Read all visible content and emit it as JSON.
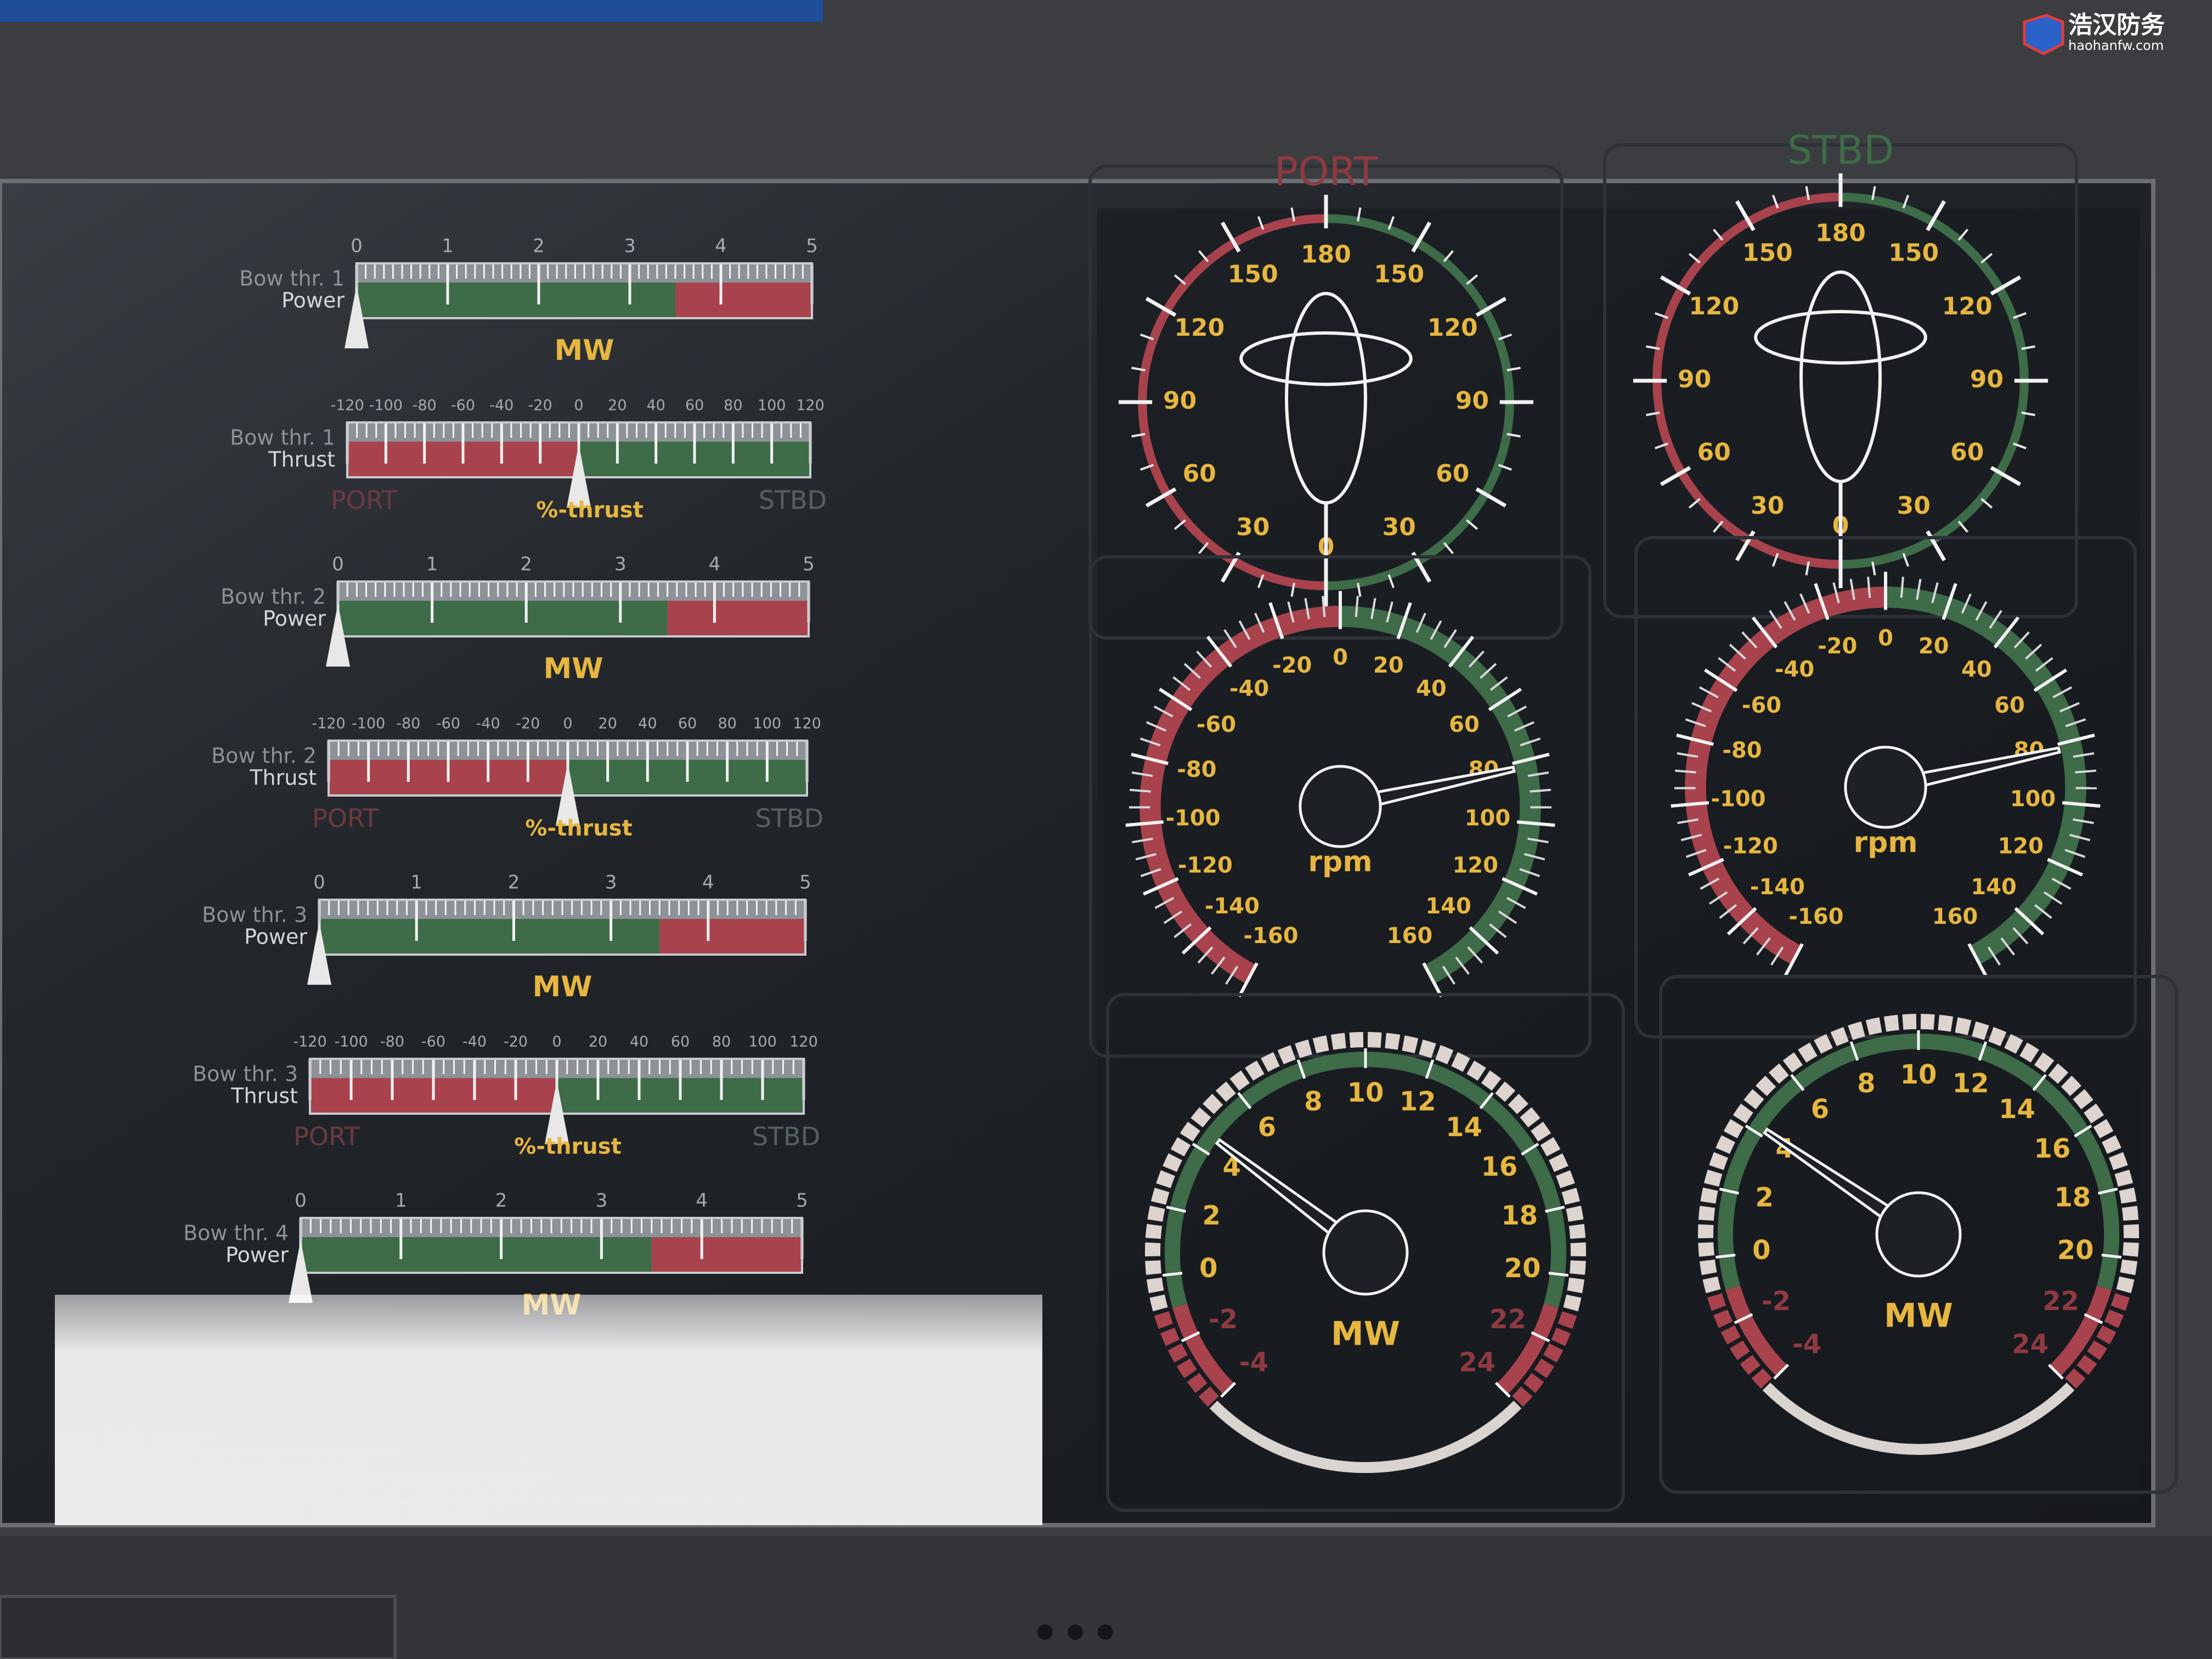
{
  "watermark": {
    "name": "浩汉防务",
    "url": "haohanfw.com"
  },
  "bars": [
    {
      "type": "power",
      "label": "Bow thr. 1",
      "quantity": "Power",
      "unit": "MW",
      "lim": [
        0,
        5
      ],
      "ticks": [
        0,
        1,
        2,
        3,
        4,
        5
      ],
      "minor_step": 0.1,
      "value": 0,
      "zones": [
        {
          "from": 0,
          "to": 3.5,
          "color": "#3e6b48"
        },
        {
          "from": 3.5,
          "to": 5,
          "color": "#a8434d"
        }
      ]
    },
    {
      "type": "thrust",
      "label": "Bow thr. 1",
      "quantity": "Thrust",
      "unit": "%-thrust",
      "port": "PORT",
      "stbd": "STBD",
      "lim": [
        -120,
        120
      ],
      "ticks": [
        -120,
        -100,
        -80,
        -60,
        -40,
        -20,
        0,
        20,
        40,
        60,
        80,
        100,
        120
      ],
      "minor_step": 5,
      "value": 0,
      "zones": [
        {
          "from": -120,
          "to": 0,
          "color": "#a8434d"
        },
        {
          "from": 0,
          "to": 120,
          "color": "#3e6b48"
        }
      ]
    },
    {
      "type": "power",
      "label": "Bow thr. 2",
      "quantity": "Power",
      "unit": "MW",
      "lim": [
        0,
        5
      ],
      "ticks": [
        0,
        1,
        2,
        3,
        4,
        5
      ],
      "minor_step": 0.1,
      "value": 0,
      "zones": [
        {
          "from": 0,
          "to": 3.5,
          "color": "#3e6b48"
        },
        {
          "from": 3.5,
          "to": 5,
          "color": "#a8434d"
        }
      ]
    },
    {
      "type": "thrust",
      "label": "Bow thr. 2",
      "quantity": "Thrust",
      "unit": "%-thrust",
      "port": "PORT",
      "stbd": "STBD",
      "lim": [
        -120,
        120
      ],
      "ticks": [
        -120,
        -100,
        -80,
        -60,
        -40,
        -20,
        0,
        20,
        40,
        60,
        80,
        100,
        120
      ],
      "minor_step": 5,
      "value": 0,
      "zones": [
        {
          "from": -120,
          "to": 0,
          "color": "#a8434d"
        },
        {
          "from": 0,
          "to": 120,
          "color": "#3e6b48"
        }
      ]
    },
    {
      "type": "power",
      "label": "Bow thr. 3",
      "quantity": "Power",
      "unit": "MW",
      "lim": [
        0,
        5
      ],
      "ticks": [
        0,
        1,
        2,
        3,
        4,
        5
      ],
      "minor_step": 0.1,
      "value": 0,
      "zones": [
        {
          "from": 0,
          "to": 3.5,
          "color": "#3e6b48"
        },
        {
          "from": 3.5,
          "to": 5,
          "color": "#a8434d"
        }
      ]
    },
    {
      "type": "thrust",
      "label": "Bow thr. 3",
      "quantity": "Thrust",
      "unit": "%-thrust",
      "port": "PORT",
      "stbd": "STBD",
      "lim": [
        -120,
        120
      ],
      "ticks": [
        -120,
        -100,
        -80,
        -60,
        -40,
        -20,
        0,
        20,
        40,
        60,
        80,
        100,
        120
      ],
      "minor_step": 5,
      "value": 0,
      "zones": [
        {
          "from": -120,
          "to": 0,
          "color": "#a8434d"
        },
        {
          "from": 0,
          "to": 120,
          "color": "#3e6b48"
        }
      ]
    },
    {
      "type": "power",
      "label": "Bow thr. 4",
      "quantity": "Power",
      "unit": "MW",
      "lim": [
        0,
        5
      ],
      "ticks": [
        0,
        1,
        2,
        3,
        4,
        5
      ],
      "minor_step": 0.1,
      "value": 0,
      "zones": [
        {
          "from": 0,
          "to": 3.5,
          "color": "#3e6b48"
        },
        {
          "from": 3.5,
          "to": 5,
          "color": "#a8434d"
        }
      ]
    }
  ],
  "gauges": [
    {
      "type": "azimuth",
      "title": "PORT",
      "title_color": "#8e3a42",
      "ticks": [
        0,
        30,
        60,
        90,
        120,
        150,
        180
      ],
      "minor_step": 10,
      "value": 0,
      "port_color": "#a8434d",
      "stbd_color": "#3e6b48"
    },
    {
      "type": "azimuth",
      "title": "STBD",
      "title_color": "#3e6b48",
      "ticks": [
        0,
        30,
        60,
        90,
        120,
        150,
        180
      ],
      "minor_step": 10,
      "value": 0,
      "port_color": "#a8434d",
      "stbd_color": "#3e6b48"
    },
    {
      "type": "rpm",
      "unit": "rpm",
      "lim": [
        -160,
        160
      ],
      "ticks": [
        -160,
        -140,
        -120,
        -100,
        -80,
        -60,
        -40,
        -20,
        0,
        20,
        40,
        60,
        80,
        100,
        120,
        140,
        160
      ],
      "minor_step": 5,
      "value": 82,
      "zones": [
        {
          "from": -160,
          "to": 0,
          "color": "#a8434d"
        },
        {
          "from": 0,
          "to": 160,
          "color": "#3e6b48"
        }
      ]
    },
    {
      "type": "rpm",
      "unit": "rpm",
      "lim": [
        -160,
        160
      ],
      "ticks": [
        -160,
        -140,
        -120,
        -100,
        -80,
        -60,
        -40,
        -20,
        0,
        20,
        40,
        60,
        80,
        100,
        120,
        140,
        160
      ],
      "minor_step": 5,
      "value": 82,
      "zones": [
        {
          "from": -160,
          "to": 0,
          "color": "#a8434d"
        },
        {
          "from": 0,
          "to": 160,
          "color": "#3e6b48"
        }
      ]
    },
    {
      "type": "mw",
      "unit": "MW",
      "lim": [
        -4,
        24
      ],
      "ticks": [
        -4,
        -2,
        0,
        2,
        4,
        6,
        8,
        10,
        12,
        14,
        16,
        18,
        20,
        22,
        24
      ],
      "minor_step": 0.5,
      "value": 4.5,
      "zones": [
        {
          "from": -4,
          "to": -1,
          "color": "#a8434d",
          "block_color": "#a8434d",
          "label_color": "#8e3a42"
        },
        {
          "from": -1,
          "to": 21,
          "color": "#3e6b48",
          "block_color": "#ddd4cf",
          "label_color": "#e6b640"
        },
        {
          "from": 21,
          "to": 24,
          "color": "#a8434d",
          "block_color": "#a8434d",
          "label_color": "#8e3a42"
        }
      ]
    },
    {
      "type": "mw",
      "unit": "MW",
      "lim": [
        -4,
        24
      ],
      "ticks": [
        -4,
        -2,
        0,
        2,
        4,
        6,
        8,
        10,
        12,
        14,
        16,
        18,
        20,
        22,
        24
      ],
      "minor_step": 0.5,
      "value": 4.2,
      "zones": [
        {
          "from": -4,
          "to": -1,
          "color": "#a8434d",
          "block_color": "#a8434d",
          "label_color": "#8e3a42"
        },
        {
          "from": -1,
          "to": 21,
          "color": "#3e6b48",
          "block_color": "#ddd4cf",
          "label_color": "#e6b640"
        },
        {
          "from": 21,
          "to": 24,
          "color": "#a8434d",
          "block_color": "#a8434d",
          "label_color": "#8e3a42"
        }
      ]
    }
  ]
}
